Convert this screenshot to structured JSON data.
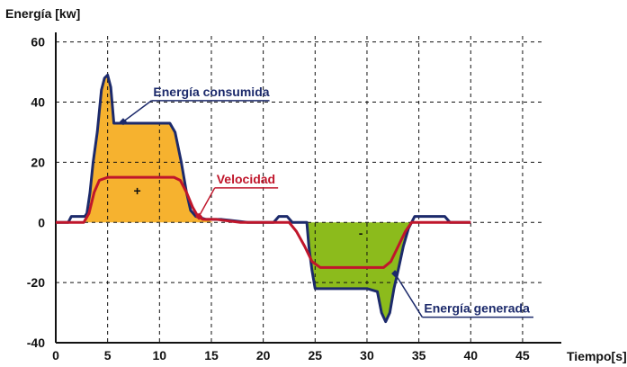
{
  "chart_data": {
    "type": "line",
    "ylabel": "Energía [kw]",
    "xlabel": "Tiempo[s]",
    "xlim": [
      0,
      47
    ],
    "ylim": [
      -40,
      62
    ],
    "x_ticks": [
      0,
      5,
      10,
      15,
      20,
      25,
      30,
      35,
      40,
      45
    ],
    "y_ticks": [
      60,
      40,
      20,
      0,
      -20,
      -40
    ],
    "grid": true,
    "series": [
      {
        "name": "Energía consumida",
        "color": "#1c2a6b",
        "points": [
          [
            0,
            0
          ],
          [
            1.2,
            0
          ],
          [
            1.5,
            2
          ],
          [
            2.8,
            2
          ],
          [
            3.0,
            3
          ],
          [
            3.3,
            10
          ],
          [
            3.6,
            20
          ],
          [
            4.0,
            30
          ],
          [
            4.4,
            44
          ],
          [
            4.7,
            48
          ],
          [
            5.0,
            49
          ],
          [
            5.3,
            45
          ],
          [
            5.6,
            33
          ],
          [
            11.0,
            33
          ],
          [
            11.5,
            30
          ],
          [
            12.1,
            20
          ],
          [
            12.6,
            10
          ],
          [
            13.0,
            4
          ],
          [
            13.5,
            2
          ],
          [
            14.5,
            1
          ],
          [
            16,
            1
          ],
          [
            18.5,
            0
          ],
          [
            21,
            0
          ],
          [
            21.5,
            2
          ],
          [
            22.3,
            2
          ],
          [
            22.8,
            0
          ],
          [
            24.2,
            0
          ],
          [
            24.4,
            -8
          ],
          [
            24.7,
            -16
          ],
          [
            25.0,
            -22
          ],
          [
            30.0,
            -22
          ],
          [
            31.0,
            -23
          ],
          [
            31.4,
            -30
          ],
          [
            31.8,
            -33
          ],
          [
            32.2,
            -30
          ],
          [
            32.6,
            -22
          ],
          [
            33.0,
            -16
          ],
          [
            33.5,
            -8
          ],
          [
            34.0,
            -2
          ],
          [
            34.6,
            2
          ],
          [
            37.5,
            2
          ],
          [
            38.0,
            0
          ],
          [
            40,
            0
          ]
        ]
      },
      {
        "name": "Velocidad",
        "color": "#c0162b",
        "points": [
          [
            0,
            0
          ],
          [
            2.7,
            0
          ],
          [
            3.2,
            3
          ],
          [
            3.7,
            10
          ],
          [
            4.2,
            14
          ],
          [
            5.0,
            15
          ],
          [
            11.4,
            15
          ],
          [
            12.0,
            14
          ],
          [
            12.6,
            10
          ],
          [
            13.2,
            5
          ],
          [
            13.7,
            2
          ],
          [
            14.2,
            1
          ],
          [
            15.5,
            1
          ],
          [
            17.8,
            0
          ],
          [
            20,
            0
          ],
          [
            22.5,
            0
          ],
          [
            23.2,
            -3
          ],
          [
            24.0,
            -8
          ],
          [
            24.7,
            -13
          ],
          [
            25.5,
            -15
          ],
          [
            31.6,
            -15
          ],
          [
            32.3,
            -13
          ],
          [
            33.0,
            -8
          ],
          [
            33.7,
            -3
          ],
          [
            34.3,
            0
          ],
          [
            40,
            0
          ]
        ]
      }
    ],
    "fills": [
      {
        "meaning": "consumed",
        "color": "#f6b22f",
        "points": [
          [
            2.9,
            0
          ],
          [
            3.0,
            3
          ],
          [
            3.3,
            10
          ],
          [
            3.6,
            20
          ],
          [
            4.0,
            30
          ],
          [
            4.4,
            44
          ],
          [
            4.7,
            48
          ],
          [
            5.0,
            49
          ],
          [
            5.3,
            45
          ],
          [
            5.6,
            33
          ],
          [
            11.0,
            33
          ],
          [
            11.5,
            30
          ],
          [
            12.1,
            20
          ],
          [
            12.6,
            10
          ],
          [
            13.0,
            4
          ],
          [
            13.5,
            2
          ],
          [
            14.5,
            1
          ],
          [
            15.2,
            0
          ]
        ]
      },
      {
        "meaning": "generated",
        "color": "#8cbb1c",
        "points": [
          [
            24.2,
            0
          ],
          [
            24.4,
            -8
          ],
          [
            24.7,
            -16
          ],
          [
            25.0,
            -22
          ],
          [
            30.0,
            -22
          ],
          [
            31.0,
            -23
          ],
          [
            31.4,
            -30
          ],
          [
            31.8,
            -33
          ],
          [
            32.2,
            -30
          ],
          [
            32.6,
            -22
          ],
          [
            33.0,
            -16
          ],
          [
            33.5,
            -8
          ],
          [
            34.0,
            -2
          ],
          [
            34.3,
            0
          ]
        ]
      }
    ],
    "annotations": [
      {
        "text": "Energía consumida",
        "color": "#1c2a6b",
        "x": 9.4,
        "y": 42,
        "pointer": [
          6.5,
          33.5
        ]
      },
      {
        "text": "Velocidad",
        "color": "#c0162b",
        "x": 15.5,
        "y": 13,
        "pointer": [
          13.8,
          2
        ]
      },
      {
        "text": "Energía generada",
        "color": "#1c2a6b",
        "x": 35.5,
        "y": -30,
        "pointer": [
          32.7,
          -17
        ]
      },
      {
        "text": "+",
        "color": "#111111",
        "x": 7.5,
        "y": 9
      },
      {
        "text": "-",
        "color": "#111111",
        "x": 29.2,
        "y": -5
      }
    ]
  }
}
